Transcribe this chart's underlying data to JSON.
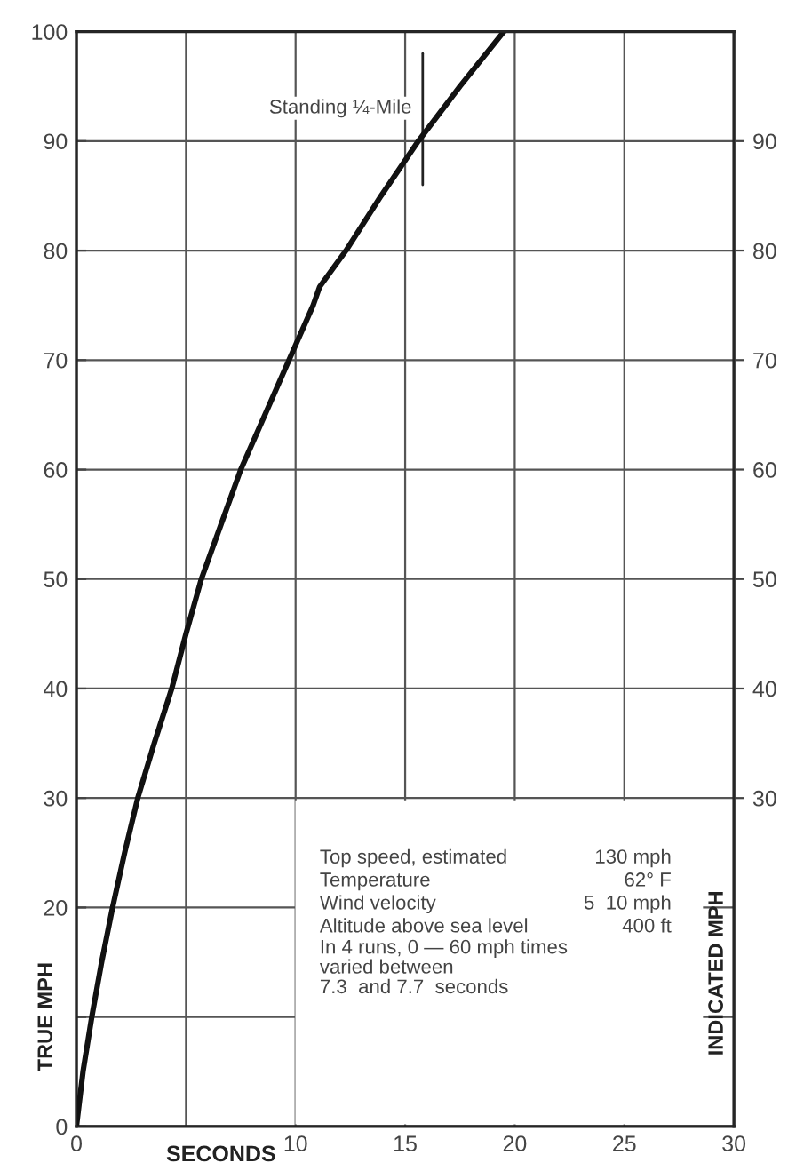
{
  "chart_data": {
    "type": "line",
    "xlabel": "SECONDS",
    "ylabel": "TRUE MPH",
    "y2label": "INDICATED MPH",
    "x": [
      0,
      0.3,
      0.7,
      1.15,
      1.65,
      2.2,
      2.8,
      3.55,
      4.35,
      5.0,
      5.7,
      6.6,
      7.5,
      8.6,
      9.7,
      10.8,
      11.1,
      12.3,
      13.9,
      15.6,
      17.5,
      19.5
    ],
    "series": [
      {
        "color": "#111111",
        "values": [
          0,
          5,
          10,
          15,
          20,
          25,
          30,
          35,
          40,
          45,
          50,
          55,
          60,
          65,
          70,
          75,
          76.7,
          80,
          85,
          90,
          95,
          100
        ]
      }
    ],
    "xlim": [
      0,
      30
    ],
    "xticks": [
      0,
      {
        "value": 5,
        "label": null
      },
      10,
      15,
      20,
      25,
      30
    ],
    "ylim": [
      0,
      100
    ],
    "yticks": [
      0,
      {
        "value": 10,
        "label": null
      },
      20,
      30,
      40,
      50,
      60,
      70,
      80,
      90,
      100
    ],
    "y2lim": [
      0,
      100
    ],
    "y2ticks": [
      30,
      40,
      50,
      60,
      70,
      80,
      90
    ],
    "grid": true,
    "marker": "none",
    "line_style": "solid",
    "annotations": [
      {
        "text": "Standing ¼-Mile",
        "x": 15.8,
        "y": 91
      },
      "Top speed, estimated",
      "130 mph",
      "Temperature",
      "62° F",
      "Wind velocity",
      "5  10 mph",
      "Altitude above sea level",
      "400 ft",
      "In 4 runs, 0 — 60 mph times\nvaried between\n7.3  and 7.7  seconds"
    ]
  }
}
